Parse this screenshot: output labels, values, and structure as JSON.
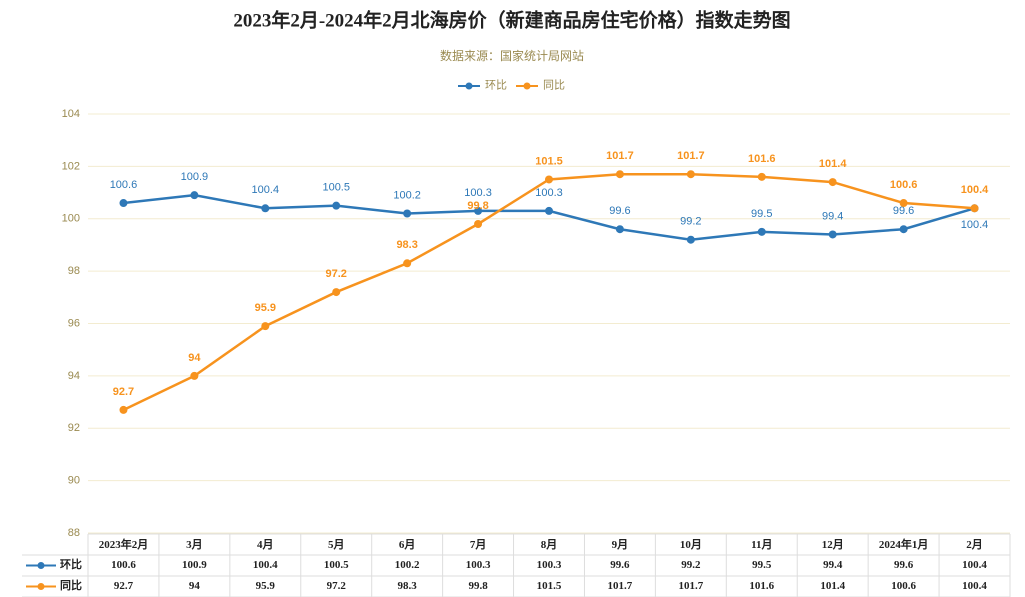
{
  "chart_data": {
    "type": "line",
    "title": "2023年2月-2024年2月北海房价（新建商品房住宅价格）指数走势图",
    "subtitle": "数据来源：国家统计局网站",
    "categories": [
      "2023年2月",
      "3月",
      "4月",
      "5月",
      "6月",
      "7月",
      "8月",
      "9月",
      "10月",
      "11月",
      "12月",
      "2024年1月",
      "2月"
    ],
    "series": [
      {
        "name": "环比",
        "color": "#2e78b7",
        "values": [
          100.6,
          100.9,
          100.4,
          100.5,
          100.2,
          100.3,
          100.3,
          99.6,
          99.2,
          99.5,
          99.4,
          99.6,
          100.4
        ]
      },
      {
        "name": "同比",
        "color": "#f7931e",
        "values": [
          92.7,
          94,
          95.9,
          97.2,
          98.3,
          99.8,
          101.5,
          101.7,
          101.7,
          101.6,
          101.4,
          100.6,
          100.4
        ]
      }
    ],
    "ylim": [
      88,
      104
    ],
    "yticks": [
      88,
      90,
      92,
      94,
      96,
      98,
      100,
      102,
      104
    ],
    "grid": true,
    "legend": "top"
  }
}
